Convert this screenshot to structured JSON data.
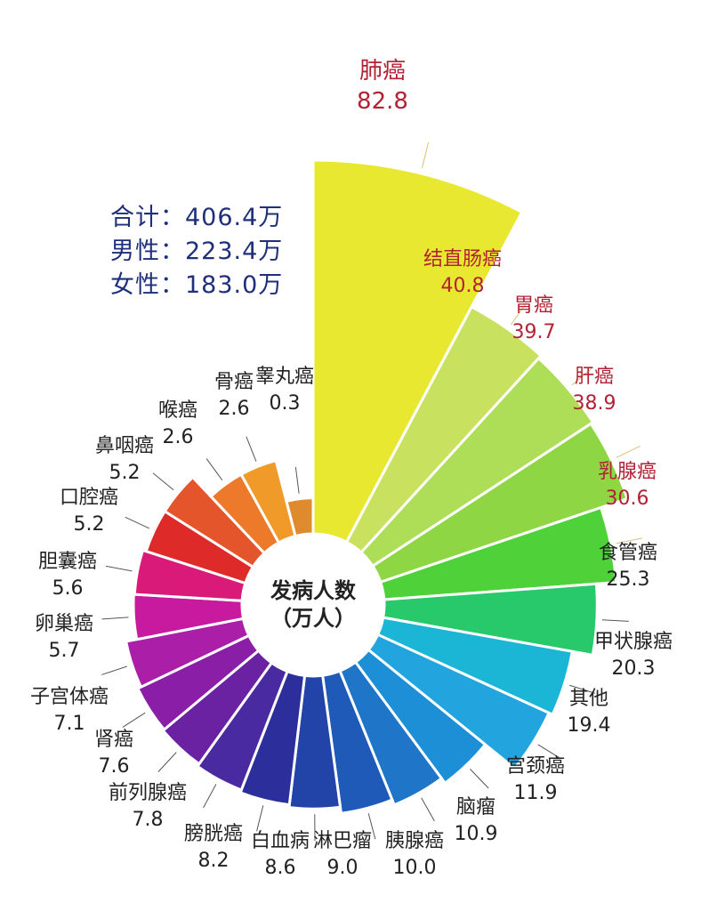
{
  "summary": {
    "total": "合计：406.4万",
    "male": "男性：223.4万",
    "female": "女性：183.0万"
  },
  "center_label": {
    "line1": "发病人数",
    "line2": "（万人）"
  },
  "colors": {
    "highlight_label": "#b22234",
    "normal_label": "#222222",
    "summary_text": "#1f2f7a",
    "leader_highlight": "#d9c07a",
    "leader_normal": "#555555"
  },
  "chart_data": {
    "type": "polar-bar",
    "title": "",
    "unit": "万人",
    "series": [
      {
        "label": "肺癌",
        "value": 82.8,
        "color": "#e8e830",
        "highlight": true
      },
      {
        "label": "结直肠癌",
        "value": 40.8,
        "color": "#c8e260",
        "highlight": true
      },
      {
        "label": "胃癌",
        "value": 39.7,
        "color": "#aedd57",
        "highlight": true
      },
      {
        "label": "肝癌",
        "value": 38.9,
        "color": "#8fd644",
        "highlight": true
      },
      {
        "label": "乳腺癌",
        "value": 30.6,
        "color": "#4fd13a",
        "highlight": true
      },
      {
        "label": "食管癌",
        "value": 25.3,
        "color": "#27c96a",
        "highlight": false
      },
      {
        "label": "甲状腺癌",
        "value": 20.3,
        "color": "#1bb6d6",
        "highlight": false
      },
      {
        "label": "其他",
        "value": 19.4,
        "color": "#22a4de",
        "highlight": false
      },
      {
        "label": "宫颈癌",
        "value": 11.9,
        "color": "#1d8fd6",
        "highlight": false
      },
      {
        "label": "脑瘤",
        "value": 10.9,
        "color": "#1f75c8",
        "highlight": false
      },
      {
        "label": "胰腺癌",
        "value": 10.0,
        "color": "#1f5ab8",
        "highlight": false
      },
      {
        "label": "淋巴瘤",
        "value": 9.0,
        "color": "#2243a8",
        "highlight": false
      },
      {
        "label": "白血病",
        "value": 8.6,
        "color": "#2c2f9b",
        "highlight": false
      },
      {
        "label": "膀胱癌",
        "value": 8.2,
        "color": "#4a2aa0",
        "highlight": false
      },
      {
        "label": "前列腺癌",
        "value": 7.8,
        "color": "#6a22a3",
        "highlight": false
      },
      {
        "label": "肾癌",
        "value": 7.6,
        "color": "#8a1ea6",
        "highlight": false
      },
      {
        "label": "子宫体癌",
        "value": 7.1,
        "color": "#ab1fa8",
        "highlight": false
      },
      {
        "label": "卵巢癌",
        "value": 5.7,
        "color": "#c81a9e",
        "highlight": false
      },
      {
        "label": "胆囊癌",
        "value": 5.6,
        "color": "#d91a78",
        "highlight": false
      },
      {
        "label": "口腔癌",
        "value": 5.2,
        "color": "#df2a2a",
        "highlight": false
      },
      {
        "label": "鼻咽癌",
        "value": 5.2,
        "color": "#e4552b",
        "highlight": false
      },
      {
        "label": "喉癌",
        "value": 2.6,
        "color": "#ec7a2a",
        "highlight": false
      },
      {
        "label": "骨癌",
        "value": 2.6,
        "color": "#f09a2a",
        "highlight": false
      },
      {
        "label": "睾丸癌",
        "value": 0.3,
        "color": "#e08a2e",
        "highlight": false
      }
    ]
  }
}
